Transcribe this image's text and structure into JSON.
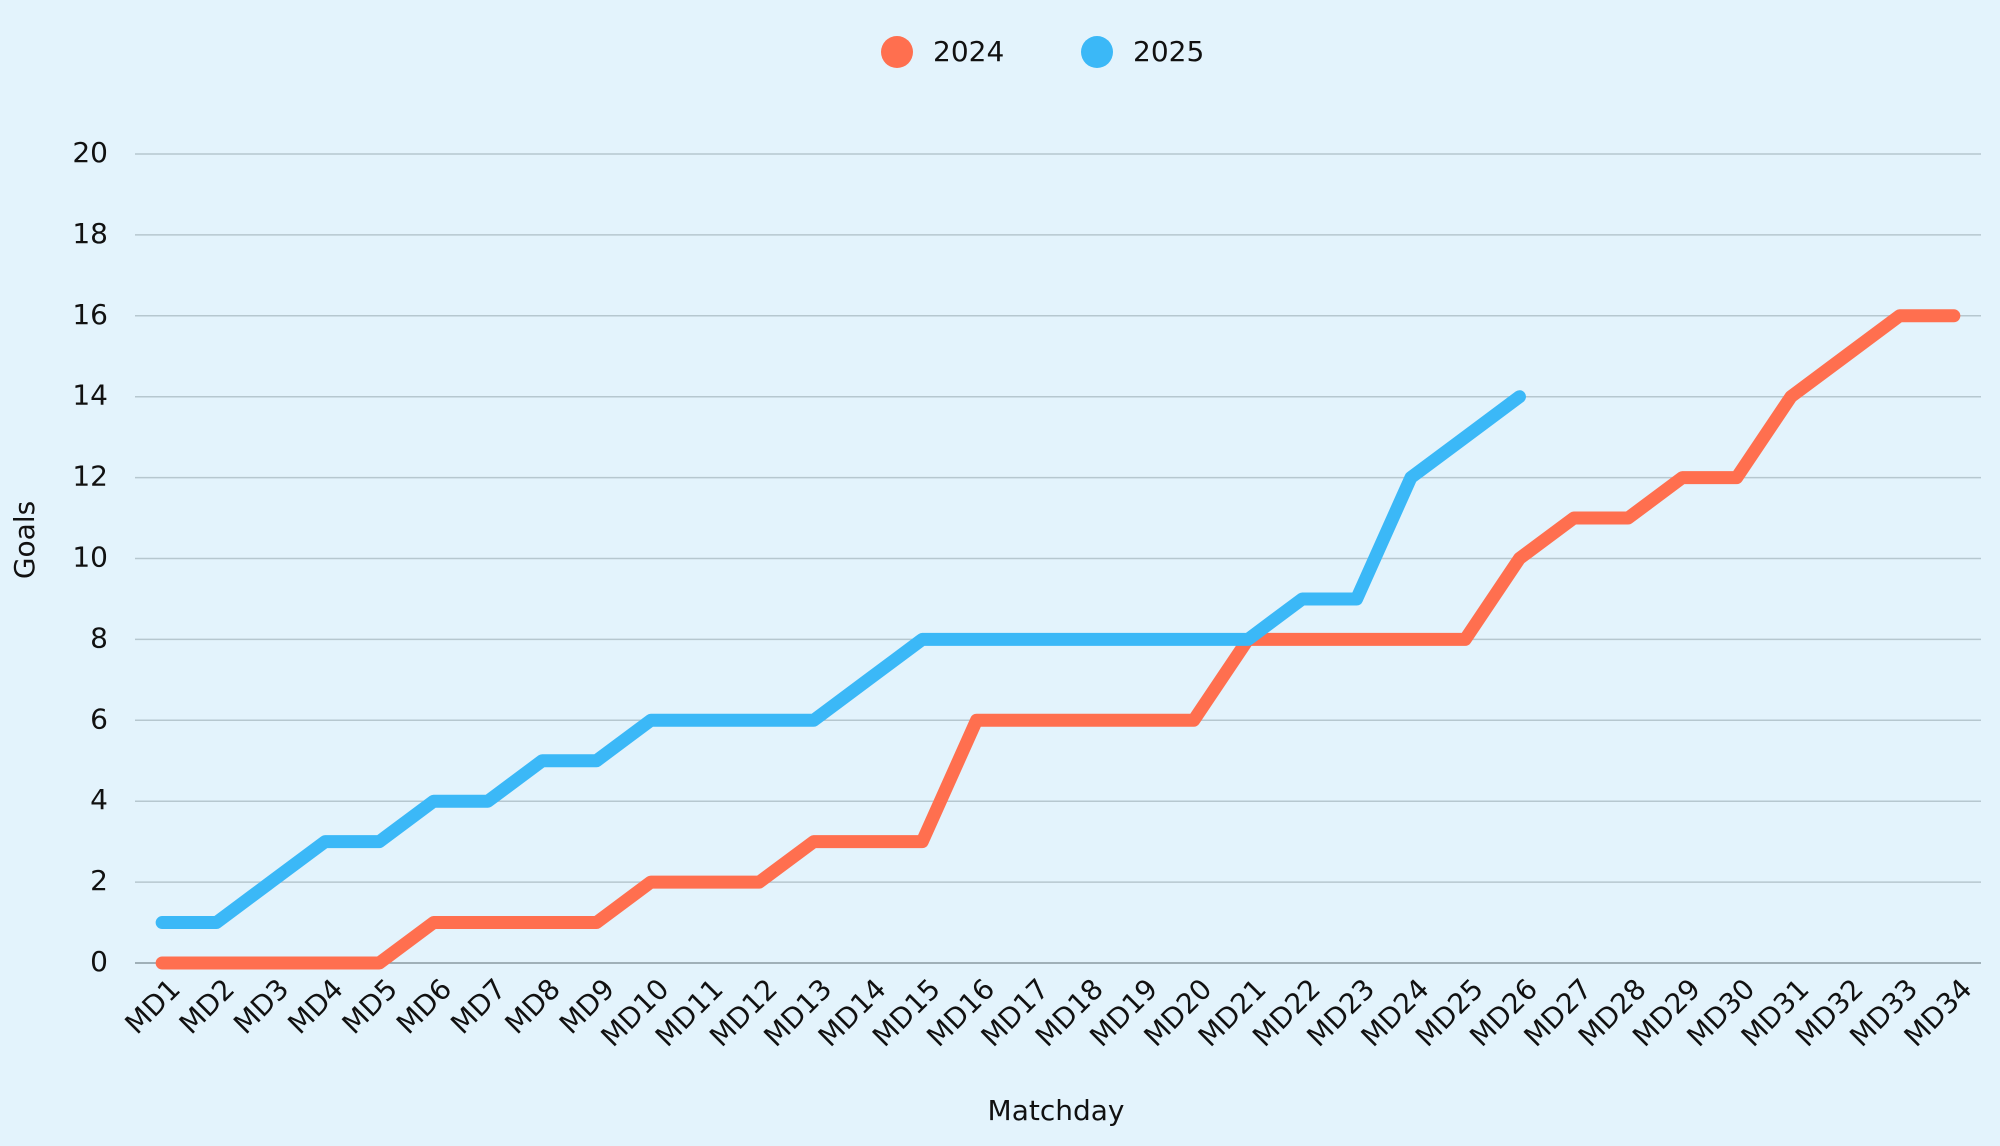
{
  "chart_data": {
    "type": "line",
    "xlabel": "Matchday",
    "ylabel": "Goals",
    "categories": [
      "MD1",
      "MD2",
      "MD3",
      "MD4",
      "MD5",
      "MD6",
      "MD7",
      "MD8",
      "MD9",
      "MD10",
      "MD11",
      "MD12",
      "MD13",
      "MD14",
      "MD15",
      "MD16",
      "MD17",
      "MD18",
      "MD19",
      "MD20",
      "MD21",
      "MD22",
      "MD23",
      "MD24",
      "MD25",
      "MD26",
      "MD27",
      "MD28",
      "MD29",
      "MD30",
      "MD31",
      "MD32",
      "MD33",
      "MD34"
    ],
    "series": [
      {
        "name": "2024",
        "color": "#ff6f4f",
        "values": [
          0,
          0,
          0,
          0,
          0,
          1,
          1,
          1,
          1,
          2,
          2,
          2,
          3,
          3,
          3,
          6,
          6,
          6,
          6,
          6,
          8,
          8,
          8,
          8,
          8,
          10,
          11,
          11,
          12,
          12,
          14,
          15,
          16,
          16
        ]
      },
      {
        "name": "2025",
        "color": "#3bb8f7",
        "values": [
          1,
          1,
          2,
          3,
          3,
          4,
          4,
          5,
          5,
          6,
          6,
          6,
          6,
          7,
          8,
          8,
          8,
          8,
          8,
          8,
          8,
          9,
          9,
          12,
          13,
          14,
          null,
          null,
          null,
          null,
          null,
          null,
          null,
          null
        ]
      }
    ],
    "ylim": [
      0,
      20
    ],
    "yticks": [
      0,
      2,
      4,
      6,
      8,
      10,
      12,
      14,
      16,
      18,
      20
    ],
    "grid": true,
    "legend": "top"
  }
}
